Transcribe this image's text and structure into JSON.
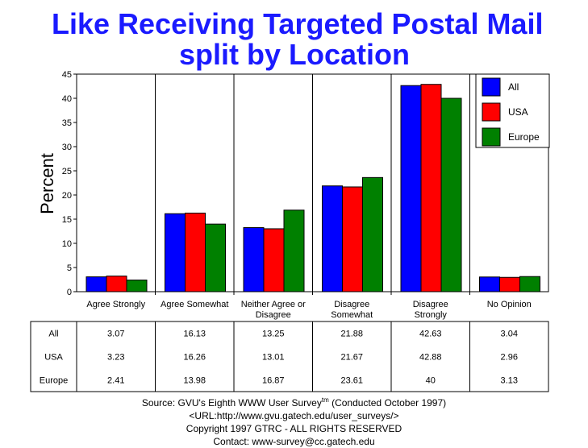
{
  "chart_data": {
    "type": "bar",
    "title_lines": [
      "Like Receiving Targeted Postal Mail",
      "split by Location"
    ],
    "ylabel": "Percent",
    "ylim": [
      0,
      45
    ],
    "yticks": [
      "0",
      "5",
      "10",
      "15",
      "20",
      "25",
      "30",
      "35",
      "40",
      "45"
    ],
    "categories": [
      [
        "Agree Strongly"
      ],
      [
        "Agree Somewhat"
      ],
      [
        "Neither Agree or",
        "Disagree"
      ],
      [
        "Disagree",
        "Somewhat"
      ],
      [
        "Disagree",
        "Strongly"
      ],
      [
        "No Opinion"
      ]
    ],
    "series": [
      {
        "name": "All",
        "color": "#0000ff",
        "values": [
          3.07,
          16.13,
          13.25,
          21.88,
          42.63,
          3.04
        ],
        "labels": [
          "3.07",
          "16.13",
          "13.25",
          "21.88",
          "42.63",
          "3.04"
        ]
      },
      {
        "name": "USA",
        "color": "#ff0000",
        "values": [
          3.23,
          16.26,
          13.01,
          21.67,
          42.88,
          2.96
        ],
        "labels": [
          "3.23",
          "16.26",
          "13.01",
          "21.67",
          "42.88",
          "2.96"
        ]
      },
      {
        "name": "Europe",
        "color": "#008000",
        "values": [
          2.41,
          13.98,
          16.87,
          23.61,
          40,
          3.13
        ],
        "labels": [
          "2.41",
          "13.98",
          "16.87",
          "23.61",
          "40",
          "3.13"
        ]
      }
    ],
    "legend_position": "top-right",
    "grid": false
  },
  "footer": {
    "source_prefix": "Source: GVU's Eighth WWW User Survey",
    "source_tm": "tm",
    "source_suffix": " (Conducted October 1997)",
    "url": "<URL:http://www.gvu.gatech.edu/user_surveys/>",
    "copyright": "Copyright 1997 GTRC - ALL RIGHTS RESERVED",
    "contact": "Contact: www-survey@cc.gatech.edu"
  }
}
